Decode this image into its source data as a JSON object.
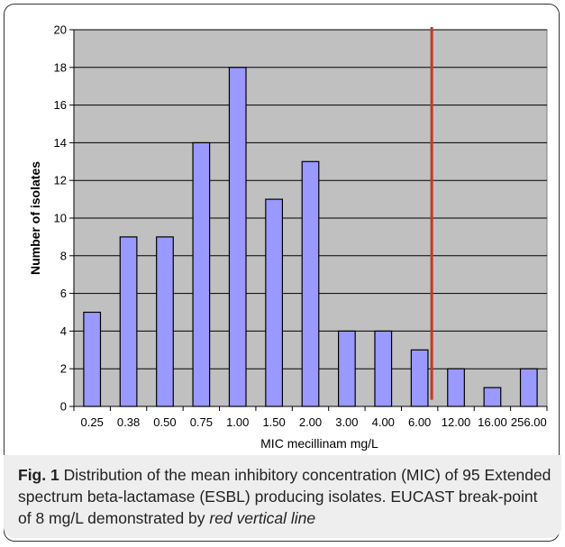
{
  "chart_data": {
    "type": "bar",
    "categories": [
      "0.25",
      "0.38",
      "0.50",
      "0.75",
      "1.00",
      "1.50",
      "2.00",
      "3.00",
      "4.00",
      "6.00",
      "12.00",
      "16.00",
      "256.00"
    ],
    "values": [
      5,
      9,
      9,
      14,
      18,
      11,
      13,
      4,
      4,
      3,
      2,
      1,
      2
    ],
    "xlabel": "MIC mecillinam  mg/L",
    "ylabel": "Number of isolates",
    "ylim": [
      0,
      20
    ],
    "yticks": [
      "0",
      "2",
      "4",
      "6",
      "8",
      "10",
      "12",
      "14",
      "16",
      "18",
      "20"
    ],
    "grid": true,
    "bar_color": "#9999ff",
    "plot_background": "#c0c0c0",
    "reference_line": {
      "value_mg_per_L": 8,
      "color": "#c0392b"
    }
  },
  "caption": {
    "label": "Fig. 1",
    "text": "Distribution of the mean inhibitory concentration (MIC) of 95 Extended spectrum beta-lactamase (ESBL) producing isolates. EUCAST break-point of 8 mg/L demonstrated by",
    "emphasis": "red vertical line"
  }
}
